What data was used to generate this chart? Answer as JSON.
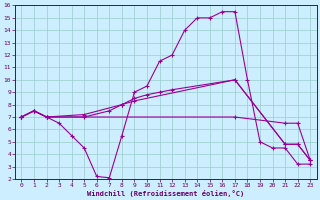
{
  "xlabel": "Windchill (Refroidissement éolien,°C)",
  "bg_color": "#cceeff",
  "line_color": "#990099",
  "grid_color": "#99cccc",
  "tick_color": "#660066",
  "xlim": [
    -0.5,
    23.5
  ],
  "ylim": [
    2,
    16
  ],
  "xticks": [
    0,
    1,
    2,
    3,
    4,
    5,
    6,
    7,
    8,
    9,
    10,
    11,
    12,
    13,
    14,
    15,
    16,
    17,
    18,
    19,
    20,
    21,
    22,
    23
  ],
  "yticks": [
    2,
    3,
    4,
    5,
    6,
    7,
    8,
    9,
    10,
    11,
    12,
    13,
    14,
    15,
    16
  ],
  "line1_x": [
    0,
    1,
    2,
    3,
    4,
    5,
    6,
    7,
    8,
    9,
    10,
    11,
    12,
    13,
    14,
    15,
    16,
    17,
    18,
    19,
    20,
    21,
    22,
    23
  ],
  "line1_y": [
    7,
    7.5,
    7,
    6.5,
    5.5,
    4.5,
    2.2,
    2.1,
    5.5,
    9,
    9.5,
    11.5,
    12,
    14,
    15,
    15,
    15.5,
    15.5,
    10,
    5,
    4.5,
    4.5,
    3.2,
    3.2
  ],
  "line2_x": [
    0,
    1,
    2,
    17,
    21,
    22,
    23
  ],
  "line2_y": [
    7,
    7.5,
    7,
    7,
    6.5,
    6.5,
    3.5
  ],
  "line3_x": [
    0,
    1,
    2,
    5,
    8,
    9,
    10,
    11,
    12,
    17,
    21,
    22,
    23
  ],
  "line3_y": [
    7,
    7.5,
    7,
    7.2,
    8,
    8.5,
    8.8,
    9,
    9.2,
    10,
    4.8,
    4.8,
    3.5
  ],
  "line4_x": [
    0,
    1,
    2,
    5,
    7,
    8,
    9,
    17,
    21,
    22,
    23
  ],
  "line4_y": [
    7,
    7.5,
    7,
    7,
    7.5,
    8,
    8.3,
    10,
    4.8,
    4.8,
    3.5
  ]
}
